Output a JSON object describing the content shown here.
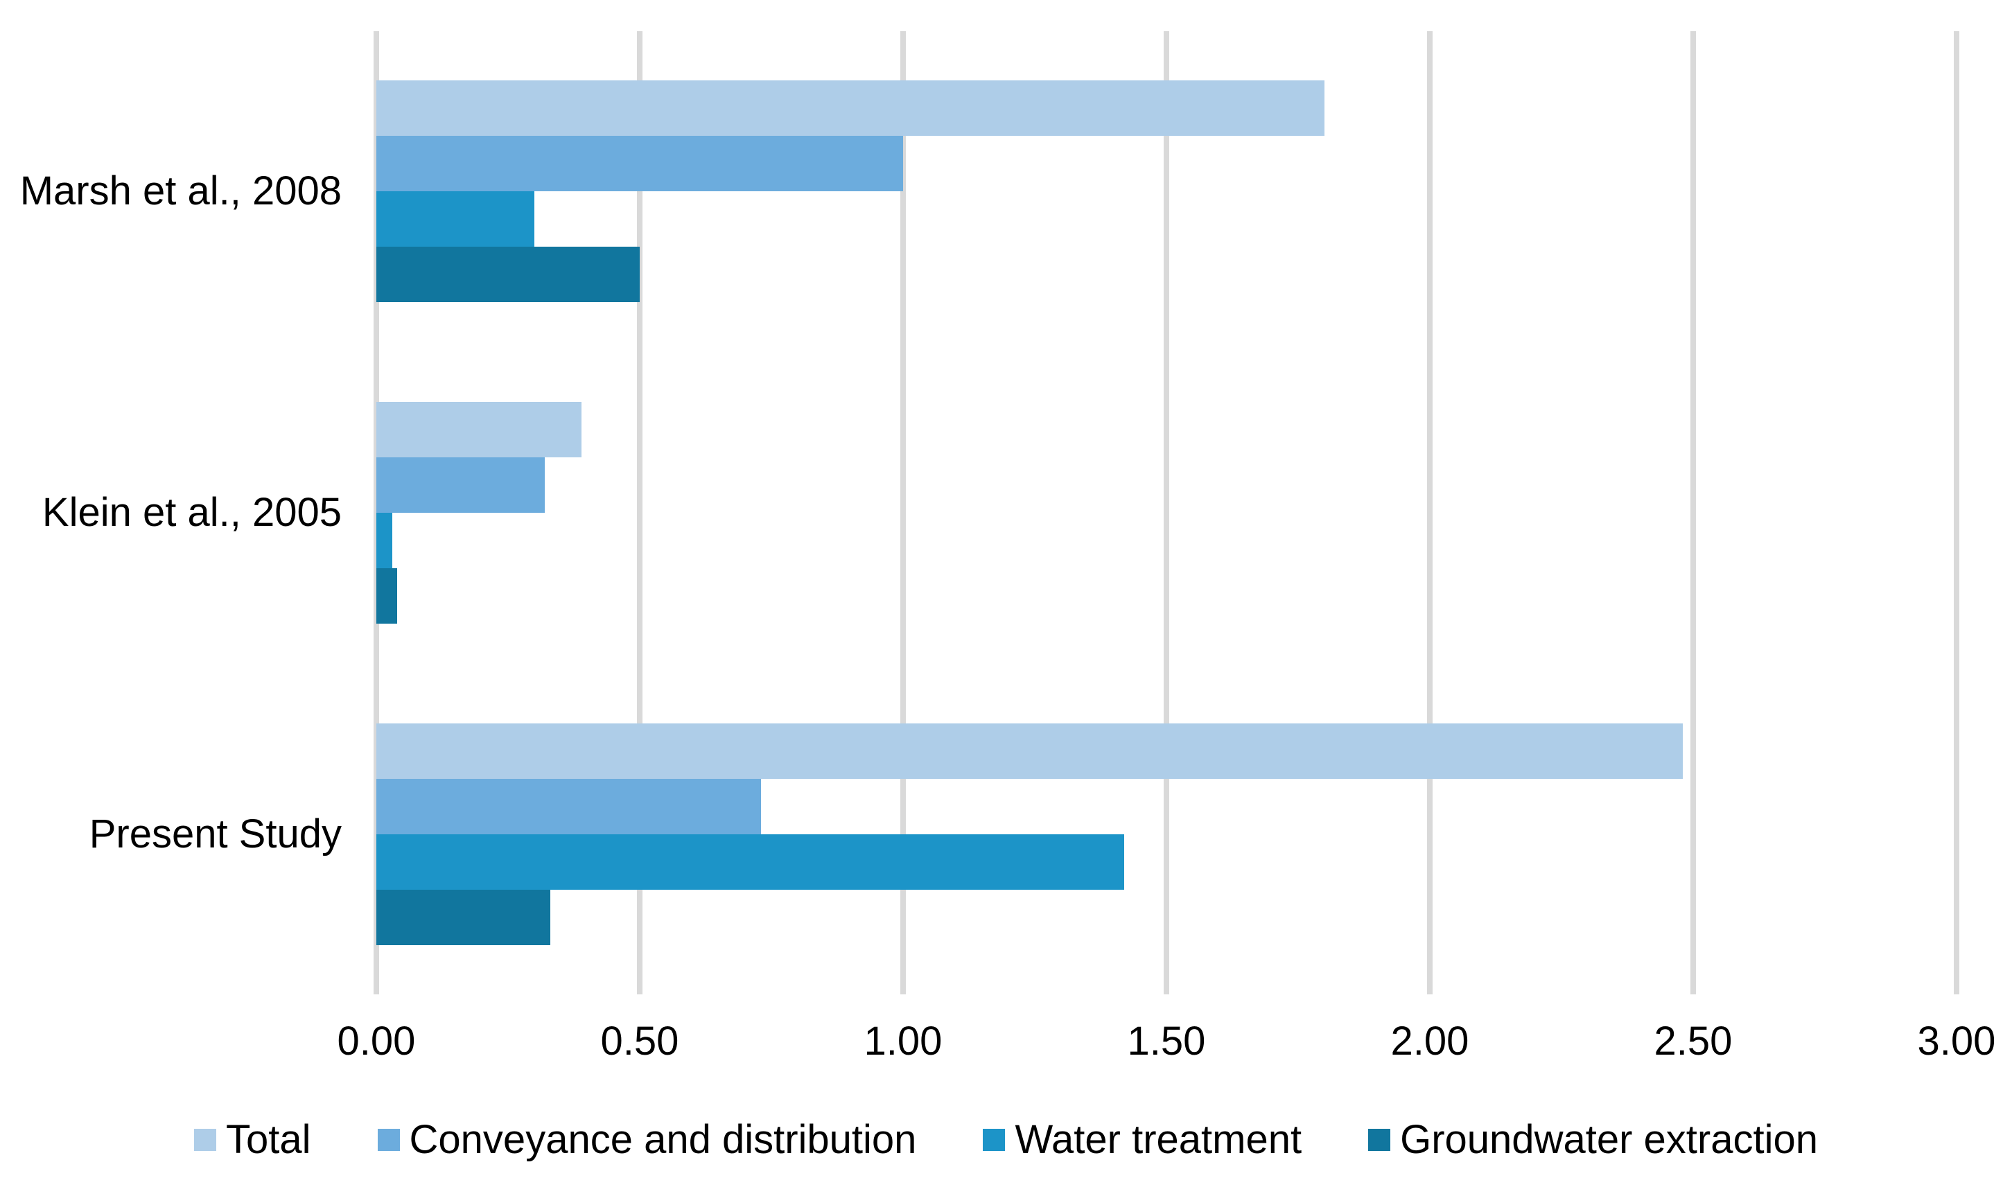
{
  "chart_data": {
    "type": "bar",
    "orientation": "horizontal",
    "title": "",
    "categories": [
      "Marsh et al., 2008",
      "Klein et al., 2005",
      "Present Study"
    ],
    "series": [
      {
        "name": "Total",
        "color": "#AECDE8",
        "values": [
          1.8,
          0.39,
          2.48
        ]
      },
      {
        "name": "Conveyance and distribution",
        "color": "#6CACDD",
        "values": [
          1.0,
          0.32,
          0.73
        ]
      },
      {
        "name": "Water treatment",
        "color": "#1C94C8",
        "values": [
          0.3,
          0.03,
          1.42
        ]
      },
      {
        "name": "Groundwater extraction",
        "color": "#11769E",
        "values": [
          0.5,
          0.04,
          0.33
        ]
      }
    ],
    "xlim": [
      0,
      3
    ],
    "x_ticks": [
      "0.00",
      "0.50",
      "1.00",
      "1.50",
      "2.00",
      "2.50",
      "3.00"
    ],
    "grid": true,
    "gridline_color": "#D9D9D9",
    "legend_position": "bottom",
    "background": "#FFFFFF",
    "text_color": "#000000"
  }
}
